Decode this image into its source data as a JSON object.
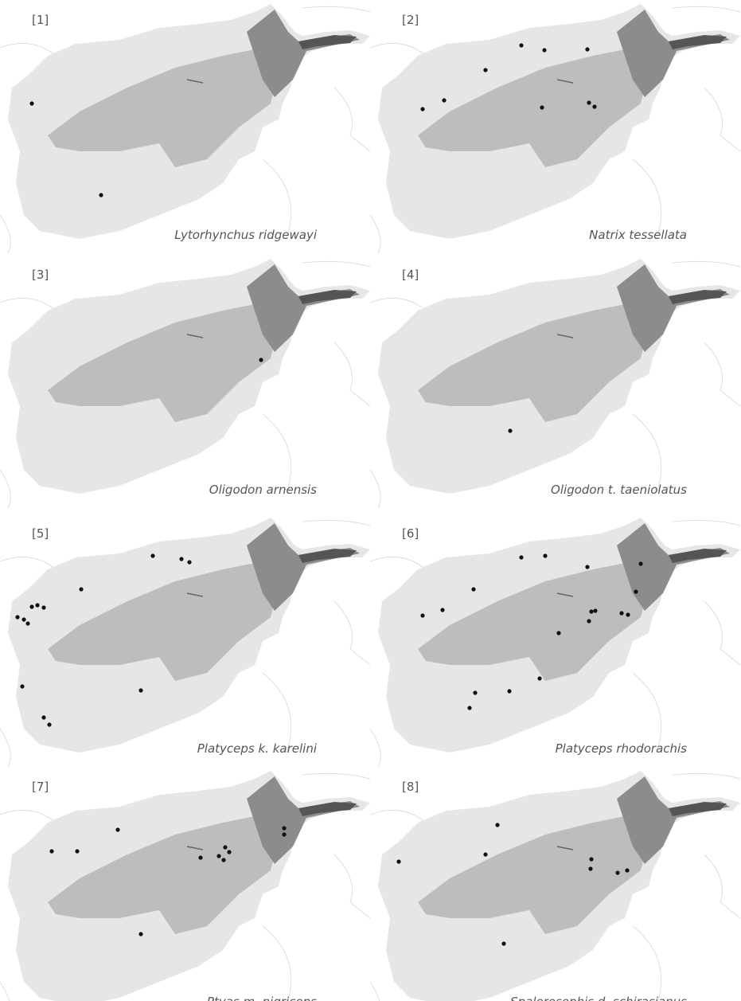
{
  "panels": [
    {
      "label": "[1]",
      "species": "Lytorhynchus ridgewayi"
    },
    {
      "label": "[2]",
      "species": "Natrix tessellata"
    },
    {
      "label": "[3]",
      "species": "Oligodon arnensis"
    },
    {
      "label": "[4]",
      "species": "Oligodon t. taeniolatus"
    },
    {
      "label": "[5]",
      "species": "Platyceps k. karelini"
    },
    {
      "label": "[6]",
      "species": "Platyceps rhodorachis"
    },
    {
      "label": "[7]",
      "species": "Ptyas m. nigriceps"
    },
    {
      "label": "[8]",
      "species": "Spalerosophis d. schirasianus"
    }
  ]
}
